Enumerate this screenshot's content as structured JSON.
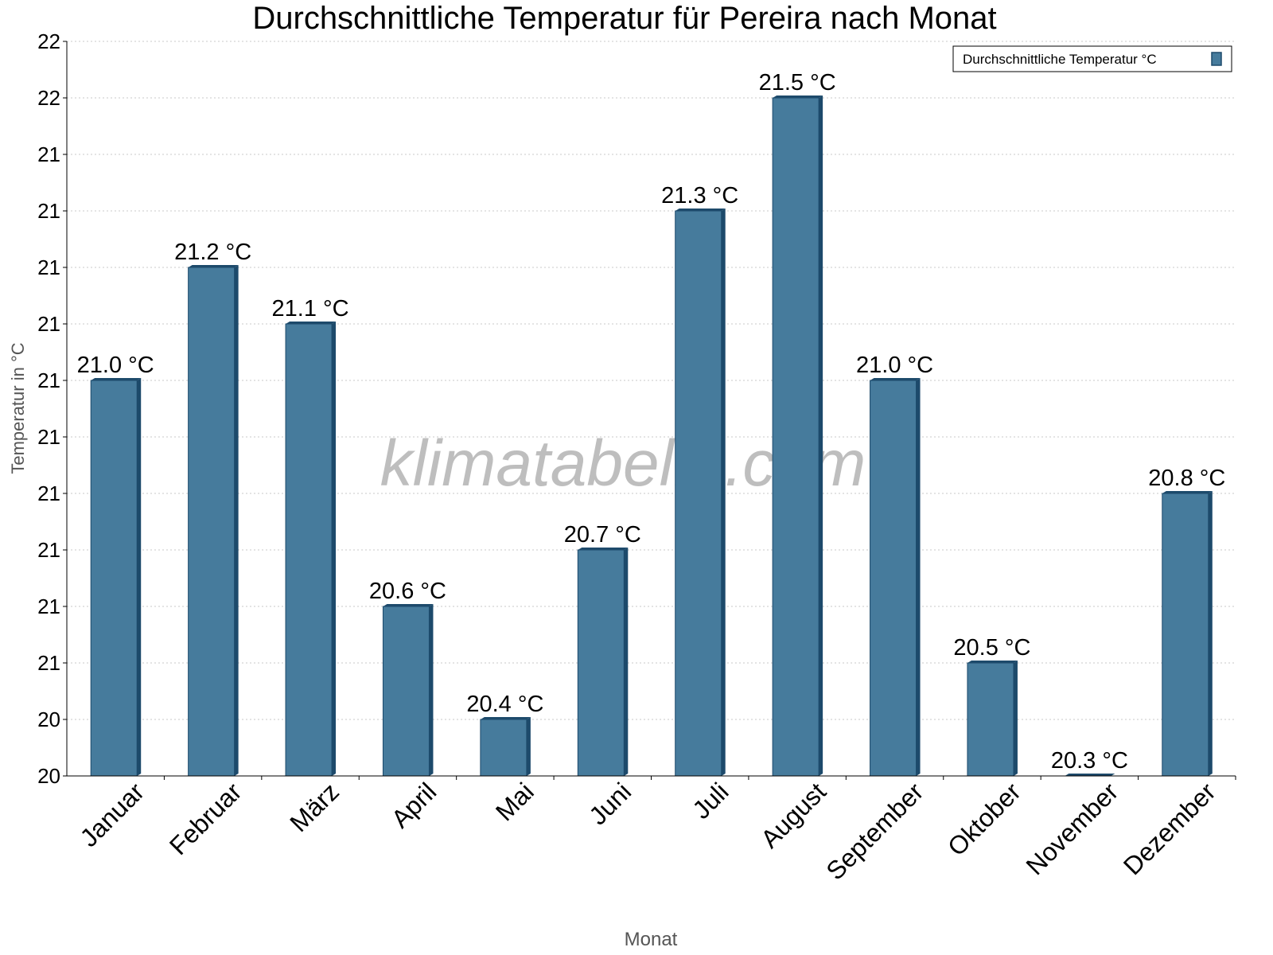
{
  "chart_data": {
    "type": "bar",
    "title": "Durchschnittliche Temperatur für Pereira nach Monat",
    "xlabel": "Monat",
    "ylabel": "Temperatur in °C",
    "categories": [
      "Januar",
      "Februar",
      "März",
      "April",
      "Mai",
      "Juni",
      "Juli",
      "August",
      "September",
      "Oktober",
      "November",
      "Dezember"
    ],
    "series": [
      {
        "name": "Durchschnittliche Temperatur °C",
        "values": [
          21.0,
          21.2,
          21.1,
          20.6,
          20.4,
          20.7,
          21.3,
          21.5,
          21.0,
          20.5,
          20.3,
          20.8
        ],
        "labels": [
          "21.0 °C",
          "21.2 °C",
          "21.1 °C",
          "20.6 °C",
          "20.4 °C",
          "20.7 °C",
          "21.3 °C",
          "21.5 °C",
          "21.0 °C",
          "20.5 °C",
          "20.3 °C",
          "20.8 °C"
        ]
      }
    ],
    "ylim": [
      20.3,
      21.6
    ],
    "yticks": [
      20.3,
      20.4,
      20.5,
      20.6,
      20.7,
      20.8,
      20.9,
      21.0,
      21.1,
      21.2,
      21.3,
      21.4,
      21.5,
      21.6
    ],
    "ytick_labels": [
      "20",
      "20",
      "21",
      "21",
      "21",
      "21",
      "21",
      "21",
      "21",
      "21",
      "21",
      "21",
      "22",
      "22"
    ],
    "grid": true,
    "legend_position": "top-right",
    "colors": {
      "bar": "#467b9c",
      "bar_side": "#1d4a6b",
      "grid": "#c8c8c8"
    },
    "watermark": "klimatabelle.com"
  }
}
